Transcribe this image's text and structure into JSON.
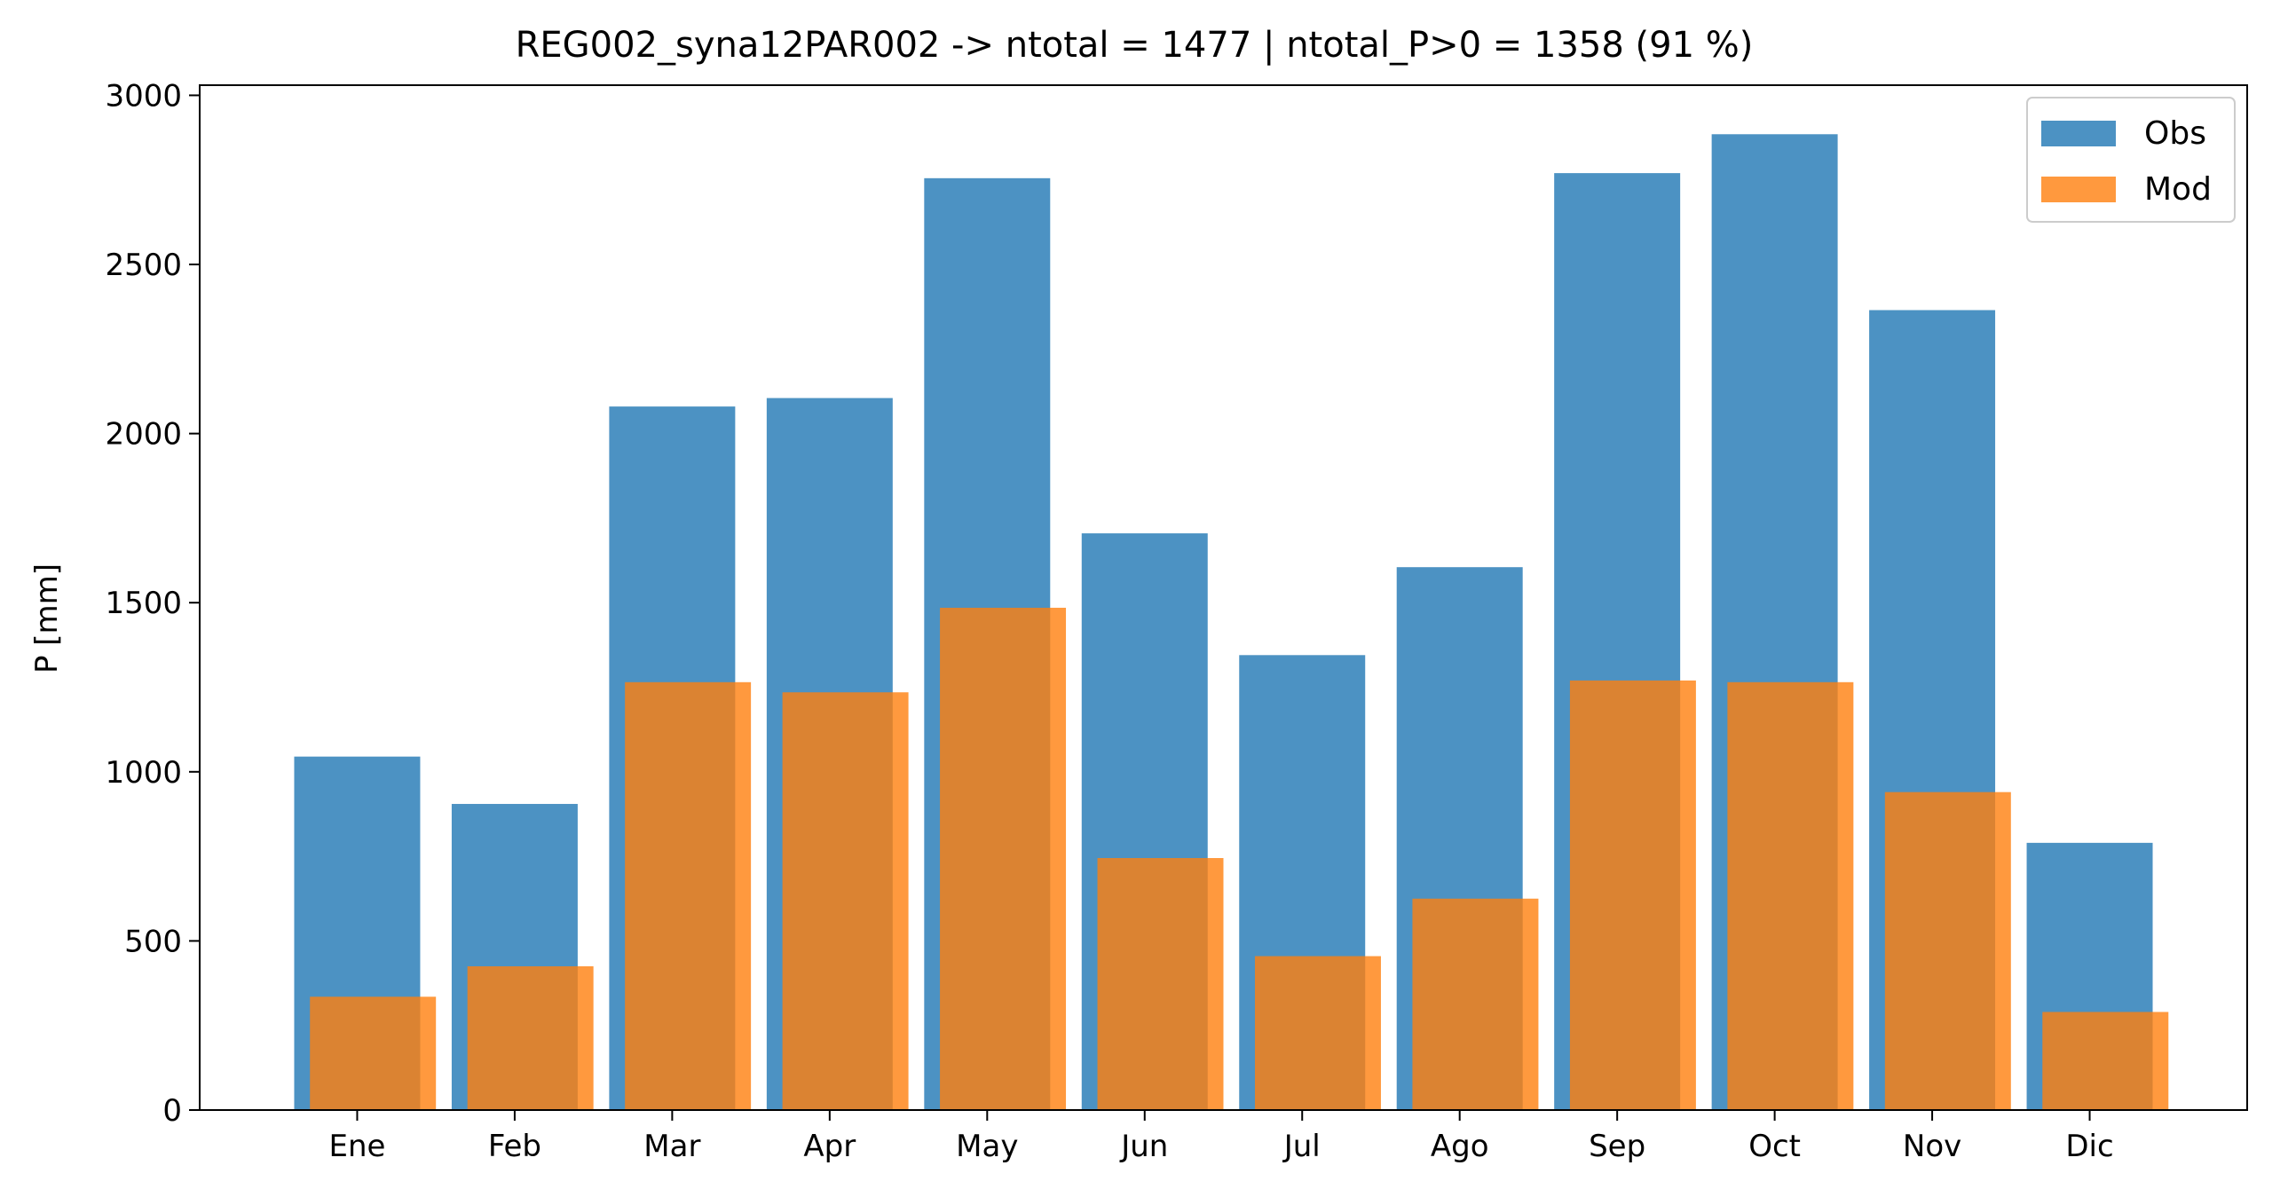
{
  "chart_data": {
    "type": "bar",
    "title": "REG002_syna12PAR002 -> ntotal = 1477 | ntotal_P>0 = 1358 (91 %)",
    "xlabel": "",
    "ylabel": "P [mm]",
    "categories": [
      "Ene",
      "Feb",
      "Mar",
      "Apr",
      "May",
      "Jun",
      "Jul",
      "Ago",
      "Sep",
      "Oct",
      "Nov",
      "Dic"
    ],
    "series": [
      {
        "name": "Obs",
        "color": "#1f77b4",
        "opacity": 0.8,
        "values": [
          1045,
          905,
          2080,
          2105,
          2755,
          1705,
          1345,
          1605,
          2770,
          2885,
          2365,
          790
        ]
      },
      {
        "name": "Mod",
        "color": "#ff7f0e",
        "opacity": 0.8,
        "values": [
          335,
          425,
          1265,
          1235,
          1485,
          745,
          455,
          625,
          1270,
          1265,
          940,
          290
        ]
      }
    ],
    "ylim": [
      0,
      3030
    ],
    "yticks": [
      0,
      500,
      1000,
      1500,
      2000,
      2500,
      3000
    ],
    "grid": false,
    "legend_position": "top-right"
  }
}
